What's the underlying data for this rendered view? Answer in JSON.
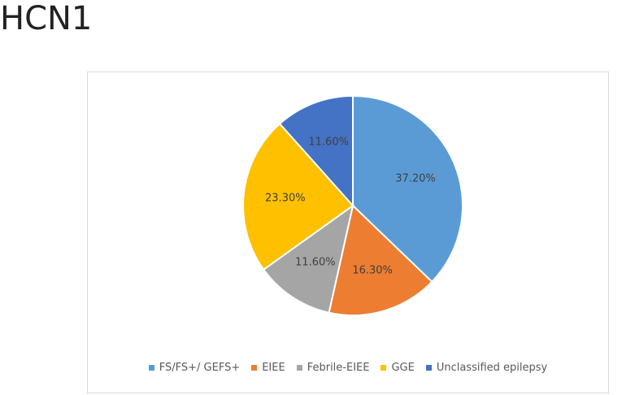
{
  "title": "HCN1",
  "chart_data": {
    "type": "pie",
    "title": "HCN1",
    "categories": [
      "FS/FS+/ GEFS+",
      "EIEE",
      "Febrile-EIEE",
      "GGE",
      "Unclassified epilepsy"
    ],
    "values": [
      37.2,
      16.3,
      11.6,
      23.3,
      11.6
    ],
    "data_labels": [
      "37.20%",
      "16.30%",
      "11.60%",
      "23.30%",
      "11.60%"
    ],
    "colors": [
      "#5B9BD5",
      "#ED7D31",
      "#A5A5A5",
      "#FFC000",
      "#4472C4"
    ],
    "legend_position": "bottom",
    "grid": false
  }
}
